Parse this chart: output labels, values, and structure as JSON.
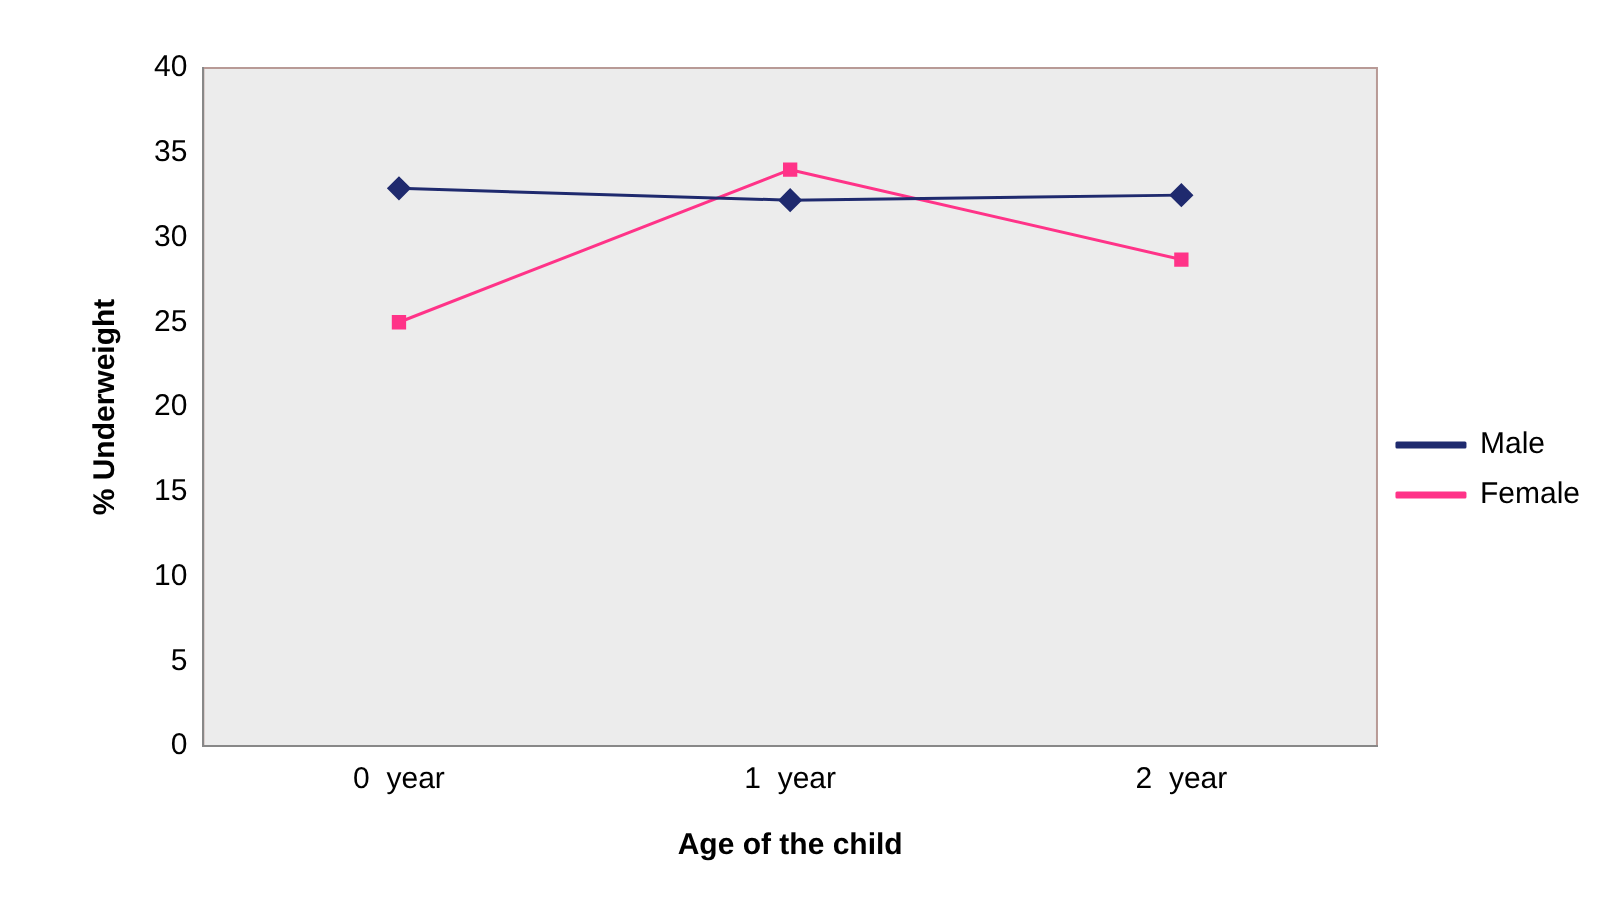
{
  "chart_data": {
    "type": "line",
    "xlabel": "Age of the child",
    "ylabel": "% Underweight",
    "categories": [
      "0  year",
      "1  year",
      "2  year"
    ],
    "series": [
      {
        "name": "Male",
        "color": "#1f2a6e",
        "marker": "diamond",
        "values": [
          32.9,
          32.2,
          32.5
        ]
      },
      {
        "name": "Female",
        "color": "#ff3388",
        "marker": "square",
        "values": [
          25,
          34,
          28.7
        ]
      }
    ],
    "ylim": [
      0,
      40
    ],
    "yticks": [
      0,
      5,
      10,
      15,
      20,
      25,
      30,
      35,
      40
    ],
    "grid": false,
    "legend": "right"
  }
}
